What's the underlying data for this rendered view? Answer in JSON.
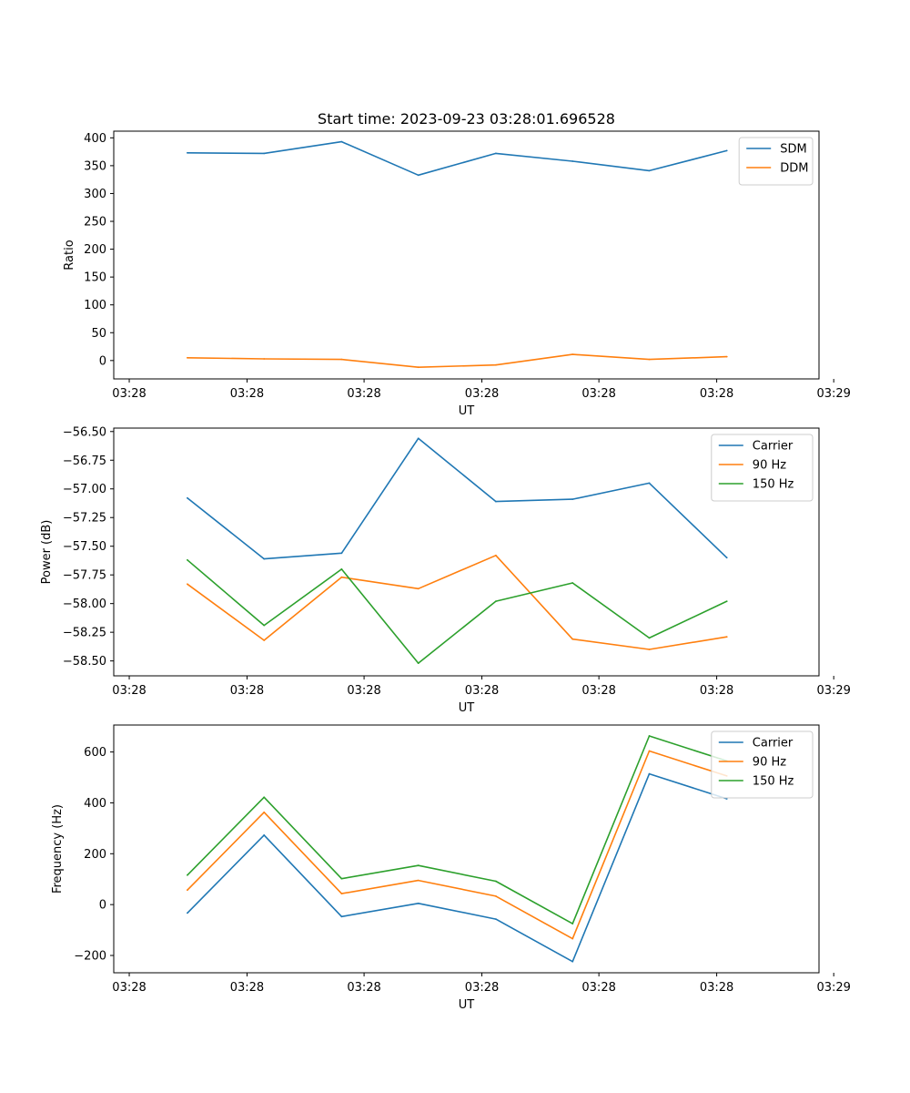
{
  "title": "Start time: 2023-09-23 03:28:01.696528",
  "chart_data": [
    {
      "type": "line",
      "xlabel": "UT",
      "ylabel": "Ratio",
      "ylim": [
        -33,
        412
      ],
      "yticks": [
        0,
        50,
        100,
        150,
        200,
        250,
        300,
        350,
        400
      ],
      "yticklabels": [
        "0",
        "50",
        "100",
        "150",
        "200",
        "250",
        "300",
        "350",
        "400"
      ],
      "xlim": [
        -0.2,
        8.9
      ],
      "xticks": [
        0,
        1.52,
        3.03,
        4.55,
        6.06,
        7.58,
        9.09
      ],
      "xticklabels": [
        "03:28",
        "03:28",
        "03:28",
        "03:28",
        "03:28",
        "03:28",
        "03:29"
      ],
      "x": [
        0.75,
        1.74,
        2.74,
        3.73,
        4.73,
        5.72,
        6.71,
        7.71
      ],
      "legend": "top-right",
      "series": [
        {
          "name": "SDM",
          "color": "#1f77b4",
          "values": [
            373,
            372,
            393,
            333,
            372,
            358,
            341,
            377
          ]
        },
        {
          "name": "DDM",
          "color": "#ff7f0e",
          "values": [
            5,
            3,
            2,
            -12,
            -8,
            11,
            2,
            7
          ]
        }
      ]
    },
    {
      "type": "line",
      "xlabel": "UT",
      "ylabel": "Power (dB)",
      "ylim": [
        -58.63,
        -56.47
      ],
      "yticks": [
        -58.5,
        -58.25,
        -58.0,
        -57.75,
        -57.5,
        -57.25,
        -57.0,
        -56.75,
        -56.5
      ],
      "yticklabels": [
        "−58.50",
        "−58.25",
        "−58.00",
        "−57.75",
        "−57.50",
        "−57.25",
        "−57.00",
        "−56.75",
        "−56.50"
      ],
      "xlim": [
        -0.2,
        8.9
      ],
      "xticks": [
        0,
        1.52,
        3.03,
        4.55,
        6.06,
        7.58,
        9.09
      ],
      "xticklabels": [
        "03:28",
        "03:28",
        "03:28",
        "03:28",
        "03:28",
        "03:28",
        "03:29"
      ],
      "x": [
        0.75,
        1.74,
        2.74,
        3.73,
        4.73,
        5.72,
        6.71,
        7.71
      ],
      "legend": "top-right",
      "series": [
        {
          "name": "Carrier",
          "color": "#1f77b4",
          "values": [
            -57.08,
            -57.61,
            -57.56,
            -56.56,
            -57.11,
            -57.09,
            -56.95,
            -57.6
          ]
        },
        {
          "name": "90 Hz",
          "color": "#ff7f0e",
          "values": [
            -57.83,
            -58.32,
            -57.77,
            -57.87,
            -57.58,
            -58.31,
            -58.4,
            -58.29
          ]
        },
        {
          "name": "150 Hz",
          "color": "#2ca02c",
          "values": [
            -57.62,
            -58.19,
            -57.7,
            -58.52,
            -57.98,
            -57.82,
            -58.3,
            -57.98
          ]
        }
      ]
    },
    {
      "type": "line",
      "xlabel": "UT",
      "ylabel": "Frequency (Hz)",
      "ylim": [
        -268,
        706
      ],
      "yticks": [
        -200,
        0,
        200,
        400,
        600
      ],
      "yticklabels": [
        "−200",
        "0",
        "200",
        "400",
        "600"
      ],
      "xlim": [
        -0.2,
        8.9
      ],
      "xticks": [
        0,
        1.52,
        3.03,
        4.55,
        6.06,
        7.58,
        9.09
      ],
      "xticklabels": [
        "03:28",
        "03:28",
        "03:28",
        "03:28",
        "03:28",
        "03:28",
        "03:29"
      ],
      "x": [
        0.75,
        1.74,
        2.74,
        3.73,
        4.73,
        5.72,
        6.71,
        7.71
      ],
      "legend": "top-right",
      "series": [
        {
          "name": "Carrier",
          "color": "#1f77b4",
          "values": [
            -33,
            273,
            -47,
            5,
            -57,
            -224,
            514,
            416
          ]
        },
        {
          "name": "90 Hz",
          "color": "#ff7f0e",
          "values": [
            57,
            363,
            43,
            95,
            33,
            -134,
            604,
            506
          ]
        },
        {
          "name": "150 Hz",
          "color": "#2ca02c",
          "values": [
            116,
            422,
            102,
            154,
            92,
            -75,
            663,
            565
          ]
        }
      ]
    }
  ]
}
